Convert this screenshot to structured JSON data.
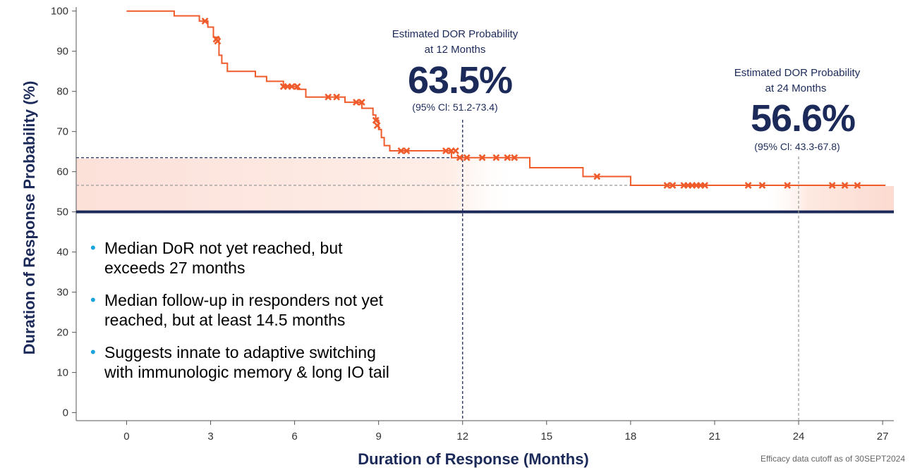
{
  "chart_data": {
    "type": "line",
    "title": "",
    "xlabel": "Duration of Response (Months)",
    "ylabel": "Duration of Response Probability (%)",
    "xlim": [
      -1.8,
      27.4
    ],
    "ylim": [
      -2,
      101
    ],
    "xticks": [
      0,
      3,
      6,
      9,
      12,
      15,
      18,
      21,
      24,
      27
    ],
    "yticks": [
      0,
      10,
      20,
      30,
      40,
      50,
      60,
      70,
      80,
      90,
      100
    ],
    "km_curve": {
      "name": "DOR",
      "color": "#ef5b2b",
      "steps": [
        [
          0,
          100
        ],
        [
          1.7,
          100
        ],
        [
          1.7,
          98.8
        ],
        [
          2.6,
          98.8
        ],
        [
          2.6,
          97.5
        ],
        [
          2.9,
          97.5
        ],
        [
          2.9,
          96
        ],
        [
          3.1,
          96
        ],
        [
          3.1,
          93.5
        ],
        [
          3.3,
          93.5
        ],
        [
          3.3,
          89
        ],
        [
          3.4,
          89
        ],
        [
          3.4,
          87
        ],
        [
          3.6,
          87
        ],
        [
          3.6,
          85
        ],
        [
          4.6,
          85
        ],
        [
          4.6,
          83.7
        ],
        [
          5.0,
          83.7
        ],
        [
          5.0,
          82.5
        ],
        [
          5.6,
          82.5
        ],
        [
          5.6,
          81.2
        ],
        [
          6.1,
          81.2
        ],
        [
          6.1,
          80.5
        ],
        [
          6.4,
          80.5
        ],
        [
          6.4,
          78.6
        ],
        [
          7.8,
          78.6
        ],
        [
          7.8,
          77.3
        ],
        [
          8.4,
          77.3
        ],
        [
          8.4,
          75.8
        ],
        [
          8.8,
          75.8
        ],
        [
          8.8,
          74.1
        ],
        [
          8.9,
          74.1
        ],
        [
          8.9,
          72.8
        ],
        [
          9.0,
          72.8
        ],
        [
          9.0,
          70.5
        ],
        [
          9.1,
          70.5
        ],
        [
          9.1,
          68.5
        ],
        [
          9.2,
          68.5
        ],
        [
          9.2,
          66.5
        ],
        [
          9.4,
          66.5
        ],
        [
          9.4,
          65.2
        ],
        [
          11.6,
          65.2
        ],
        [
          11.6,
          63.5
        ],
        [
          14.4,
          63.5
        ],
        [
          14.4,
          61.0
        ],
        [
          16.3,
          61.0
        ],
        [
          16.3,
          58.8
        ],
        [
          18.0,
          58.8
        ],
        [
          18.0,
          56.6
        ],
        [
          27.1,
          56.6
        ]
      ],
      "censored": [
        [
          2.8,
          97.5
        ],
        [
          3.2,
          93.0
        ],
        [
          3.25,
          92.5
        ],
        [
          5.6,
          81.2
        ],
        [
          5.75,
          81.2
        ],
        [
          5.9,
          81.2
        ],
        [
          6.1,
          81.2
        ],
        [
          7.2,
          78.6
        ],
        [
          7.5,
          78.6
        ],
        [
          8.2,
          77.3
        ],
        [
          8.4,
          77.3
        ],
        [
          8.9,
          72.8
        ],
        [
          8.95,
          71.5
        ],
        [
          9.8,
          65.2
        ],
        [
          10.0,
          65.2
        ],
        [
          11.4,
          65.2
        ],
        [
          11.6,
          65.2
        ],
        [
          11.75,
          65.2
        ],
        [
          11.9,
          63.5
        ],
        [
          12.15,
          63.5
        ],
        [
          12.7,
          63.5
        ],
        [
          13.2,
          63.5
        ],
        [
          13.6,
          63.5
        ],
        [
          13.85,
          63.5
        ],
        [
          16.8,
          58.8
        ],
        [
          19.3,
          56.6
        ],
        [
          19.5,
          56.6
        ],
        [
          19.9,
          56.6
        ],
        [
          20.05,
          56.6
        ],
        [
          20.2,
          56.6
        ],
        [
          20.35,
          56.6
        ],
        [
          20.5,
          56.6
        ],
        [
          20.65,
          56.6
        ],
        [
          22.2,
          56.6
        ],
        [
          22.7,
          56.6
        ],
        [
          23.6,
          56.6
        ],
        [
          25.2,
          56.6
        ],
        [
          25.65,
          56.6
        ],
        [
          26.1,
          56.6
        ]
      ]
    },
    "reference_line_y": 50,
    "reference_line_color": "#1c2a5a",
    "annotations": [
      {
        "x": 12,
        "y": 63.5,
        "head1": "Estimated DOR Probability",
        "head2": "at 12 Months",
        "value": "63.5%",
        "ci": "(95% Cl: 51.2-73.4)"
      },
      {
        "x": 24,
        "y": 56.6,
        "head1": "Estimated DOR Probability",
        "head2": "at 24 Months",
        "value": "56.6%",
        "ci": "(95% Cl: 43.3-67.8)"
      }
    ]
  },
  "bullets": [
    {
      "line1": "Median DoR not yet reached, but",
      "line2": "exceeds 27 months"
    },
    {
      "line1": "Median follow-up in responders not yet",
      "line2": "reached, but at least 14.5 months"
    },
    {
      "line1": "Suggests innate to adaptive switching",
      "line2": "with immunologic memory & long IO tail"
    }
  ],
  "footnote": "Efficacy data cutoff as of 30SEPT2024"
}
